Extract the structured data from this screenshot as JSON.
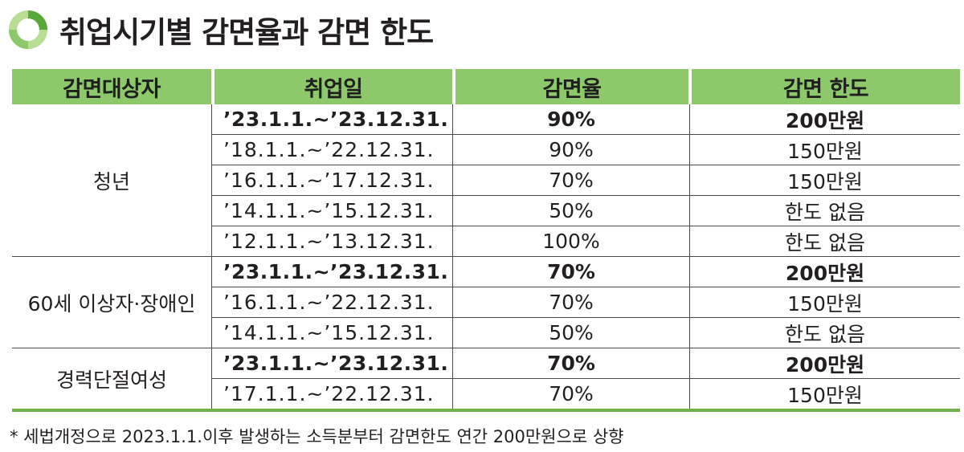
{
  "title": "취업시기별 감면율과 감면 한도",
  "colors": {
    "accent_green": "#8dc96b",
    "rule_green": "#6fb34a",
    "logo_light": "#b9dd94",
    "logo_dark": "#58a83a"
  },
  "header": [
    "감면대상자",
    "취업일",
    "감면율",
    "감면 한도"
  ],
  "groups": [
    {
      "name": "청년",
      "rows": [
        {
          "period": "’23.1.1.~’23.12.31.",
          "rate": "90%",
          "limit": "200만원",
          "bold": true
        },
        {
          "period": "’18.1.1.~’22.12.31.",
          "rate": "90%",
          "limit": "150만원",
          "bold": false
        },
        {
          "period": "’16.1.1.~’17.12.31.",
          "rate": "70%",
          "limit": "150만원",
          "bold": false
        },
        {
          "period": "’14.1.1.~’15.12.31.",
          "rate": "50%",
          "limit": "한도 없음",
          "bold": false
        },
        {
          "period": "’12.1.1.~’13.12.31.",
          "rate": "100%",
          "limit": "한도 없음",
          "bold": false
        }
      ]
    },
    {
      "name": "60세 이상자·장애인",
      "rows": [
        {
          "period": "’23.1.1.~’23.12.31.",
          "rate": "70%",
          "limit": "200만원",
          "bold": true
        },
        {
          "period": "’16.1.1.~’22.12.31.",
          "rate": "70%",
          "limit": "150만원",
          "bold": false
        },
        {
          "period": "’14.1.1.~’15.12.31.",
          "rate": "50%",
          "limit": "한도 없음",
          "bold": false
        }
      ]
    },
    {
      "name": "경력단절여성",
      "rows": [
        {
          "period": "’23.1.1.~’23.12.31.",
          "rate": "70%",
          "limit": "200만원",
          "bold": true
        },
        {
          "period": "’17.1.1.~’22.12.31.",
          "rate": "70%",
          "limit": "150만원",
          "bold": false
        }
      ]
    }
  ],
  "footnote": "* 세법개정으로 2023.1.1.이후 발생하는 소득분부터 감면한도 연간 200만원으로 상향"
}
